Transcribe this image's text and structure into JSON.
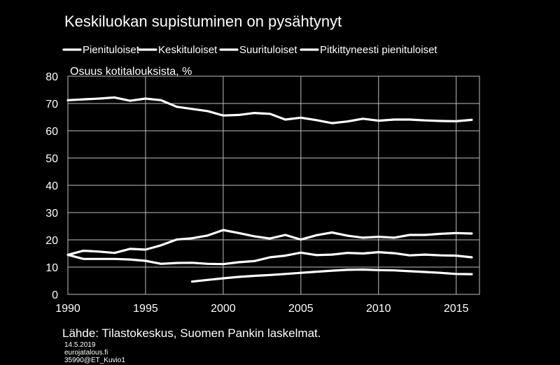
{
  "chart_data": {
    "type": "line",
    "title": "Keskiluokan supistuminen on pysähtynyt",
    "ylabel": "Osuus kotitalouksista, %",
    "xlim": [
      1990,
      2016.5
    ],
    "ylim": [
      0,
      80
    ],
    "xticks": [
      1990,
      1995,
      2000,
      2005,
      2010,
      2015
    ],
    "yticks": [
      0,
      10,
      20,
      30,
      40,
      50,
      60,
      70,
      80
    ],
    "grid": true,
    "legend_position": "top",
    "line_color": "#ffffff",
    "series": [
      {
        "name": "Pienituloiset",
        "x": [
          1990,
          1991,
          1992,
          1993,
          1994,
          1995,
          1996,
          1997,
          1998,
          1999,
          2000,
          2001,
          2002,
          2003,
          2004,
          2005,
          2006,
          2007,
          2008,
          2009,
          2010,
          2011,
          2012,
          2013,
          2014,
          2015,
          2016
        ],
        "values": [
          14.5,
          16,
          15.7,
          15.2,
          16.7,
          16.4,
          18,
          20.1,
          20.6,
          21.6,
          23.6,
          22.5,
          21.3,
          20.5,
          21.8,
          20.1,
          21.7,
          22.7,
          21.5,
          20.8,
          21.1,
          20.8,
          21.8,
          21.8,
          22.2,
          22.5,
          22.3
        ]
      },
      {
        "name": "Keskituloiset",
        "x": [
          1990,
          1991,
          1992,
          1993,
          1994,
          1995,
          1996,
          1997,
          1998,
          1999,
          2000,
          2001,
          2002,
          2003,
          2004,
          2005,
          2006,
          2007,
          2008,
          2009,
          2010,
          2011,
          2012,
          2013,
          2014,
          2015,
          2016
        ],
        "values": [
          71.2,
          71.5,
          71.8,
          72.2,
          71,
          71.8,
          71.2,
          68.8,
          68,
          67.2,
          65.6,
          65.8,
          66.5,
          66.2,
          64.1,
          64.8,
          63.9,
          62.8,
          63.4,
          64.4,
          63.7,
          64.1,
          64.1,
          63.8,
          63.6,
          63.5,
          64
        ]
      },
      {
        "name": "Suurituloiset",
        "x": [
          1990,
          1991,
          1992,
          1993,
          1994,
          1995,
          1996,
          1997,
          1998,
          1999,
          2000,
          2001,
          2002,
          2003,
          2004,
          2005,
          2006,
          2007,
          2008,
          2009,
          2010,
          2011,
          2012,
          2013,
          2014,
          2015,
          2016
        ],
        "values": [
          14.5,
          13,
          13,
          13,
          12.8,
          12.3,
          11.2,
          11.5,
          11.6,
          11.2,
          11.1,
          11.8,
          12.2,
          13.6,
          14.2,
          15.3,
          14.4,
          14.6,
          15.2,
          15,
          15.5,
          15.1,
          14.3,
          14.6,
          14.3,
          14.2,
          13.6
        ]
      },
      {
        "name": "Pitkittyneesti pienituloiset",
        "x": [
          1998,
          1999,
          2000,
          2001,
          2002,
          2003,
          2004,
          2005,
          2006,
          2007,
          2008,
          2009,
          2010,
          2011,
          2012,
          2013,
          2014,
          2015,
          2016
        ],
        "values": [
          4.7,
          5.3,
          5.9,
          6.4,
          6.8,
          7.1,
          7.5,
          7.9,
          8.3,
          8.7,
          9,
          9.1,
          8.9,
          8.8,
          8.5,
          8.2,
          7.9,
          7.5,
          7.4
        ]
      }
    ]
  },
  "source": "Lähde: Tilastokeskus, Suomen Pankin laskelmat.",
  "footer": {
    "date": "14.5.2019",
    "site": "eurojatalous.fi",
    "code": "35990@ET_Kuvio1"
  }
}
